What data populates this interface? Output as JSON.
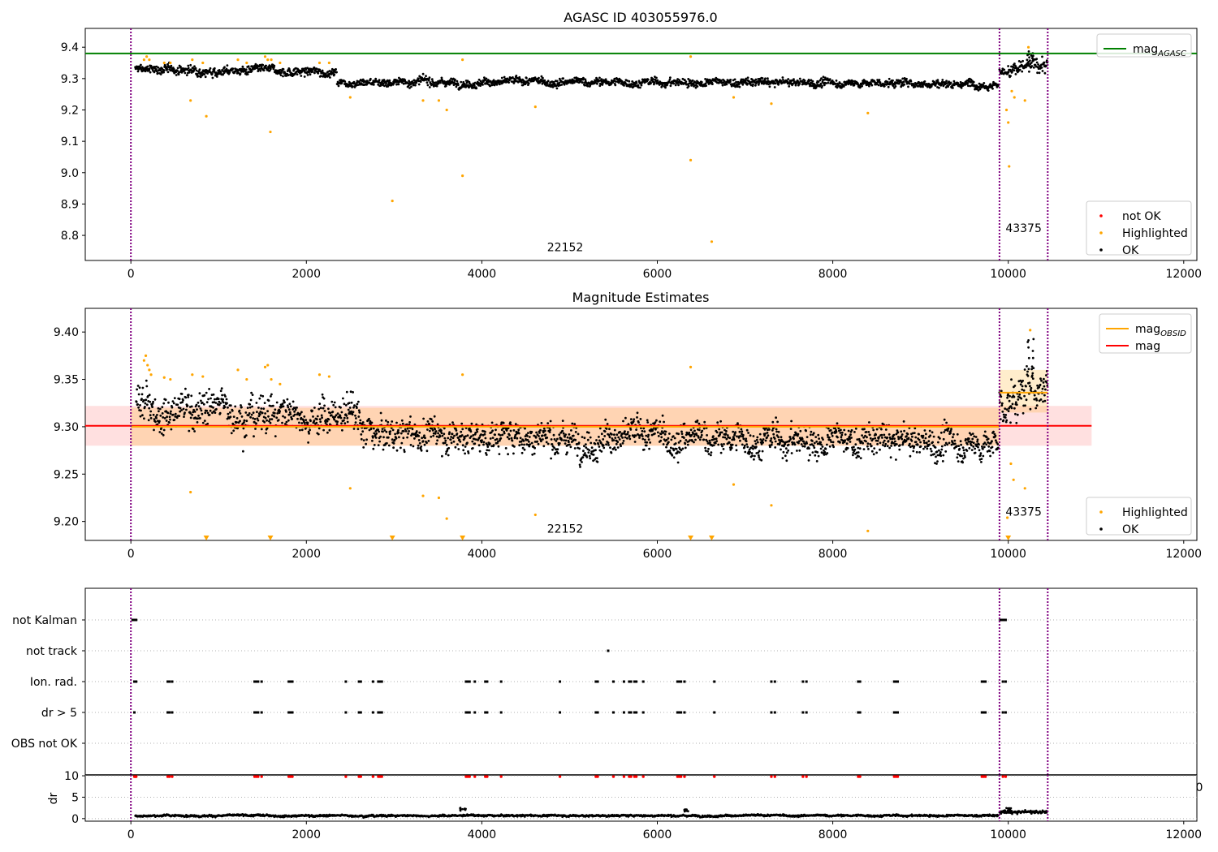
{
  "figure": {
    "panels": [
      {
        "id": "p1",
        "title": "AGASC ID 403055976.0"
      },
      {
        "id": "p2",
        "title": "Magnitude Estimates"
      },
      {
        "id": "p3",
        "title": ""
      }
    ]
  },
  "chart_data": [
    {
      "type": "scatter",
      "title": "AGASC ID 403055976.0",
      "xlabel": "",
      "ylabel": "",
      "xlim": [
        -520,
        12150
      ],
      "ylim": [
        8.72,
        9.46
      ],
      "xticks": [
        0,
        2000,
        4000,
        6000,
        8000,
        10000,
        12000
      ],
      "xtick_labels": [
        "0",
        "2000",
        "4000",
        "6000",
        "8000",
        "10000",
        "12000"
      ],
      "yticks": [
        8.8,
        8.9,
        9.0,
        9.1,
        9.2,
        9.3,
        9.4
      ],
      "ytick_labels": [
        "8.8",
        "8.9",
        "9.0",
        "9.1",
        "9.2",
        "9.3",
        "9.4"
      ],
      "hlines": [
        {
          "name": "mag_AGASC",
          "y": 9.38,
          "x": [
            -520,
            12150
          ],
          "color": "#008000"
        }
      ],
      "vlines": [
        {
          "x": 0,
          "color": "#800080",
          "style": "dotted"
        },
        {
          "x": 9900,
          "color": "#800080",
          "style": "dotted"
        },
        {
          "x": 10450,
          "color": "#800080",
          "style": "dotted"
        }
      ],
      "obsid_labels": [
        {
          "text": "22152",
          "x": 4950,
          "y": 8.75
        },
        {
          "text": "43375",
          "x": 10175,
          "y": 8.81
        }
      ],
      "legends": [
        {
          "placement": "top-right",
          "entries": [
            {
              "label": "mag",
              "sub": "AGASC",
              "kind": "line",
              "color": "#008000"
            }
          ]
        },
        {
          "placement": "bottom-right",
          "entries": [
            {
              "label": "not OK",
              "kind": "dot",
              "color": "#ff0000"
            },
            {
              "label": "Highlighted",
              "kind": "dot",
              "color": "#ffa500"
            },
            {
              "label": "OK",
              "kind": "dot",
              "color": "#000000"
            }
          ]
        }
      ],
      "series": [
        {
          "name": "OK",
          "color": "#000000",
          "kind": "band",
          "segments": [
            {
              "x": [
                50,
                2350
              ],
              "center": [
                9.33,
                9.32
              ],
              "spread": 0.022
            },
            {
              "x": [
                2350,
                9890
              ],
              "center": [
                9.29,
                9.285
              ],
              "spread": 0.02
            },
            {
              "x": [
                9900,
                10450
              ],
              "center": [
                9.32,
                9.345
              ],
              "spread": 0.035
            }
          ],
          "peaks": [
            {
              "x": 10250,
              "y": 9.39
            }
          ]
        },
        {
          "name": "Highlighted",
          "color": "#ffa500",
          "kind": "points",
          "points": [
            [
              680,
              9.23
            ],
            [
              860,
              9.18
            ],
            [
              1590,
              9.13
            ],
            [
              2500,
              9.24
            ],
            [
              2980,
              8.91
            ],
            [
              3330,
              9.23
            ],
            [
              3510,
              9.23
            ],
            [
              3600,
              9.2
            ],
            [
              3780,
              8.99
            ],
            [
              3780,
              9.36
            ],
            [
              4610,
              9.21
            ],
            [
              6380,
              9.04
            ],
            [
              6380,
              9.37
            ],
            [
              6620,
              8.78
            ],
            [
              6870,
              9.24
            ],
            [
              7300,
              9.22
            ],
            [
              8400,
              9.19
            ],
            [
              9980,
              9.2
            ],
            [
              10000,
              9.16
            ],
            [
              10010,
              9.02
            ],
            [
              10040,
              9.26
            ],
            [
              10070,
              9.24
            ],
            [
              10190,
              9.23
            ],
            [
              10230,
              9.4
            ],
            [
              150,
              9.36
            ],
            [
              180,
              9.37
            ],
            [
              210,
              9.36
            ],
            [
              700,
              9.36
            ],
            [
              820,
              9.35
            ],
            [
              1220,
              9.36
            ],
            [
              1530,
              9.37
            ],
            [
              1560,
              9.36
            ],
            [
              1600,
              9.36
            ],
            [
              1700,
              9.35
            ],
            [
              2150,
              9.35
            ],
            [
              2260,
              9.35
            ],
            [
              380,
              9.35
            ],
            [
              450,
              9.35
            ],
            [
              1320,
              9.35
            ]
          ]
        }
      ]
    },
    {
      "type": "scatter",
      "title": "Magnitude Estimates",
      "xlabel": "",
      "ylabel": "",
      "xlim": [
        -520,
        12150
      ],
      "ylim": [
        9.18,
        9.425
      ],
      "xticks": [
        0,
        2000,
        4000,
        6000,
        8000,
        10000,
        12000
      ],
      "xtick_labels": [
        "0",
        "2000",
        "4000",
        "6000",
        "8000",
        "10000",
        "12000"
      ],
      "yticks": [
        9.2,
        9.25,
        9.3,
        9.35,
        9.4
      ],
      "ytick_labels": [
        "9.20",
        "9.25",
        "9.30",
        "9.35",
        "9.40"
      ],
      "bands": [
        {
          "x": [
            -520,
            10950
          ],
          "y": [
            9.28,
            9.322
          ],
          "color": "#ff0000",
          "alpha": 0.12
        },
        {
          "x": [
            0,
            9900
          ],
          "y": [
            9.28,
            9.32
          ],
          "color": "#ffa500",
          "alpha": 0.2
        },
        {
          "x": [
            9900,
            10450
          ],
          "y": [
            9.315,
            9.36
          ],
          "color": "#ffa500",
          "alpha": 0.2
        }
      ],
      "hlines": [
        {
          "name": "mag",
          "y": 9.301,
          "x": [
            -520,
            10950
          ],
          "color": "#ff0000"
        },
        {
          "name": "mag_OBSID",
          "y": 9.3,
          "x": [
            0,
            9900
          ],
          "color": "#ffa500"
        },
        {
          "name": "mag_OBSID",
          "y": 9.336,
          "x": [
            9900,
            10450
          ],
          "color": "#ffa500"
        }
      ],
      "vlines": [
        {
          "x": 0,
          "color": "#800080",
          "style": "dotted"
        },
        {
          "x": 9900,
          "color": "#800080",
          "style": "dotted"
        },
        {
          "x": 10450,
          "color": "#800080",
          "style": "dotted"
        }
      ],
      "obsid_labels": [
        {
          "text": "22152",
          "x": 4950,
          "y": 9.188
        },
        {
          "text": "43375",
          "x": 10175,
          "y": 9.206
        }
      ],
      "legends": [
        {
          "placement": "top-right",
          "entries": [
            {
              "label": "mag",
              "sub": "OBSID",
              "kind": "line",
              "color": "#ffa500"
            },
            {
              "label": "mag",
              "kind": "line",
              "color": "#ff0000"
            }
          ]
        },
        {
          "placement": "bottom-right",
          "entries": [
            {
              "label": "Highlighted",
              "kind": "dot",
              "color": "#ffa500"
            },
            {
              "label": "OK",
              "kind": "dot",
              "color": "#000000"
            }
          ]
        }
      ],
      "series": [
        {
          "name": "OK",
          "color": "#000000",
          "kind": "band",
          "segments": [
            {
              "x": [
                60,
                2620
              ],
              "center": [
                9.325,
                9.31
              ],
              "spread": 0.03
            },
            {
              "x": [
                2620,
                9890
              ],
              "center": [
                9.293,
                9.282
              ],
              "spread": 0.026
            },
            {
              "x": [
                9900,
                10450
              ],
              "center": [
                9.32,
                9.35
              ],
              "spread": 0.035
            }
          ],
          "peaks": [
            {
              "x": 10260,
              "y": 9.395
            }
          ]
        },
        {
          "name": "Highlighted",
          "color": "#ffa500",
          "kind": "points",
          "points": [
            [
              680,
              9.231
            ],
            [
              2500,
              9.235
            ],
            [
              3330,
              9.227
            ],
            [
              3510,
              9.225
            ],
            [
              3600,
              9.203
            ],
            [
              4610,
              9.207
            ],
            [
              6870,
              9.239
            ],
            [
              7300,
              9.217
            ],
            [
              8400,
              9.19
            ],
            [
              9990,
              9.204
            ],
            [
              10030,
              9.261
            ],
            [
              10060,
              9.244
            ],
            [
              10190,
              9.235
            ],
            [
              10250,
              9.402
            ],
            [
              3780,
              9.355
            ],
            [
              6380,
              9.363
            ],
            [
              150,
              9.37
            ],
            [
              170,
              9.375
            ],
            [
              190,
              9.365
            ],
            [
              210,
              9.36
            ],
            [
              230,
              9.355
            ],
            [
              700,
              9.355
            ],
            [
              820,
              9.353
            ],
            [
              1220,
              9.36
            ],
            [
              1530,
              9.363
            ],
            [
              1560,
              9.365
            ],
            [
              1600,
              9.35
            ],
            [
              1700,
              9.345
            ],
            [
              2150,
              9.355
            ],
            [
              2260,
              9.353
            ],
            [
              380,
              9.352
            ],
            [
              450,
              9.35
            ],
            [
              1320,
              9.35
            ]
          ]
        },
        {
          "name": "Highlighted (clipped)",
          "color": "#ffa500",
          "kind": "triangles",
          "x": [
            860,
            1590,
            2980,
            3780,
            6380,
            6620,
            10000
          ]
        }
      ]
    },
    {
      "type": "scatter",
      "title": "",
      "xlabel": "",
      "ylabel": "",
      "xlim": [
        -520,
        12150
      ],
      "flag_rows": [
        "not Kalman",
        "not track",
        "Ion. rad.",
        "dr > 5",
        "OBS not OK"
      ],
      "flag_points": [
        {
          "row": "not Kalman",
          "x": [
            20,
            30,
            40,
            50,
            60,
            9910,
            9925,
            9940,
            9955,
            9970
          ]
        },
        {
          "row": "not track",
          "x": [
            5440
          ]
        },
        {
          "row": "Ion. rad.",
          "x": [
            40,
            50,
            60,
            420,
            440,
            470,
            1410,
            1430,
            1450,
            1490,
            1800,
            1820,
            1840,
            2450,
            2600,
            2620,
            2760,
            2820,
            2840,
            2860,
            3820,
            3840,
            3860,
            3920,
            4040,
            4060,
            4220,
            4890,
            5300,
            5320,
            5500,
            5620,
            5680,
            5700,
            5740,
            5760,
            5840,
            6230,
            6250,
            6270,
            6310,
            6650,
            7300,
            7340,
            7660,
            7700,
            8290,
            8310,
            8700,
            8720,
            8740,
            9700,
            9720,
            9740,
            9940,
            9970
          ]
        },
        {
          "row": "dr > 5",
          "x": [
            40,
            420,
            440,
            470,
            1410,
            1430,
            1450,
            1490,
            1800,
            1820,
            1840,
            2450,
            2600,
            2620,
            2760,
            2820,
            2840,
            2860,
            3820,
            3840,
            3860,
            3920,
            4040,
            4060,
            4220,
            4890,
            5300,
            5320,
            5500,
            5620,
            5680,
            5700,
            5740,
            5760,
            5840,
            6230,
            6250,
            6270,
            6310,
            6650,
            7300,
            7340,
            7660,
            7700,
            8290,
            8310,
            8700,
            8720,
            8740,
            9700,
            9720,
            9740,
            9940,
            9970
          ]
        }
      ],
      "vlines": [
        {
          "x": 0,
          "color": "#800080",
          "style": "dotted"
        },
        {
          "x": 9900,
          "color": "#800080",
          "style": "dotted"
        },
        {
          "x": 10450,
          "color": "#800080",
          "style": "dotted"
        }
      ]
    },
    {
      "type": "scatter",
      "title": "",
      "xlabel": "",
      "ylabel": "dr",
      "xlim": [
        -520,
        12150
      ],
      "ylim": [
        -0.6,
        10.2
      ],
      "xticks": [
        0,
        2000,
        4000,
        6000,
        8000,
        10000,
        12000
      ],
      "xtick_labels": [
        "0",
        "2000",
        "4000",
        "6000",
        "8000",
        "10000",
        "12000"
      ],
      "yticks": [
        0,
        5,
        10
      ],
      "ytick_labels": [
        "0",
        "5",
        "10"
      ],
      "stray_label": "0",
      "vlines": [
        {
          "x": 0,
          "color": "#800080",
          "style": "dotted"
        },
        {
          "x": 9900,
          "color": "#800080",
          "style": "dotted"
        },
        {
          "x": 10450,
          "color": "#800080",
          "style": "dotted"
        }
      ],
      "series": [
        {
          "name": "OK",
          "color": "#000000",
          "kind": "band",
          "segments": [
            {
              "x": [
                50,
                9890
              ],
              "center": [
                0.7,
                0.7
              ],
              "spread": 0.35
            },
            {
              "x": [
                9900,
                10450
              ],
              "center": [
                1.5,
                1.5
              ],
              "spread": 0.6
            }
          ],
          "peaks": [
            {
              "x": 3780,
              "y": 2.7
            },
            {
              "x": 6340,
              "y": 2.2
            },
            {
              "x": 10000,
              "y": 2.6
            }
          ]
        },
        {
          "name": "not OK",
          "color": "#ff0000",
          "kind": "points",
          "at_y": 9.8,
          "x": [
            40,
            50,
            60,
            420,
            440,
            470,
            1410,
            1430,
            1450,
            1490,
            1800,
            1820,
            1840,
            2450,
            2600,
            2620,
            2760,
            2820,
            2840,
            2860,
            3820,
            3840,
            3860,
            3920,
            4040,
            4060,
            4220,
            4890,
            5300,
            5320,
            5500,
            5620,
            5680,
            5700,
            5740,
            5760,
            5840,
            6230,
            6250,
            6270,
            6310,
            6650,
            7300,
            7340,
            7660,
            7700,
            8290,
            8310,
            8700,
            8720,
            8740,
            9700,
            9720,
            9740,
            9940,
            9970
          ]
        }
      ]
    }
  ]
}
